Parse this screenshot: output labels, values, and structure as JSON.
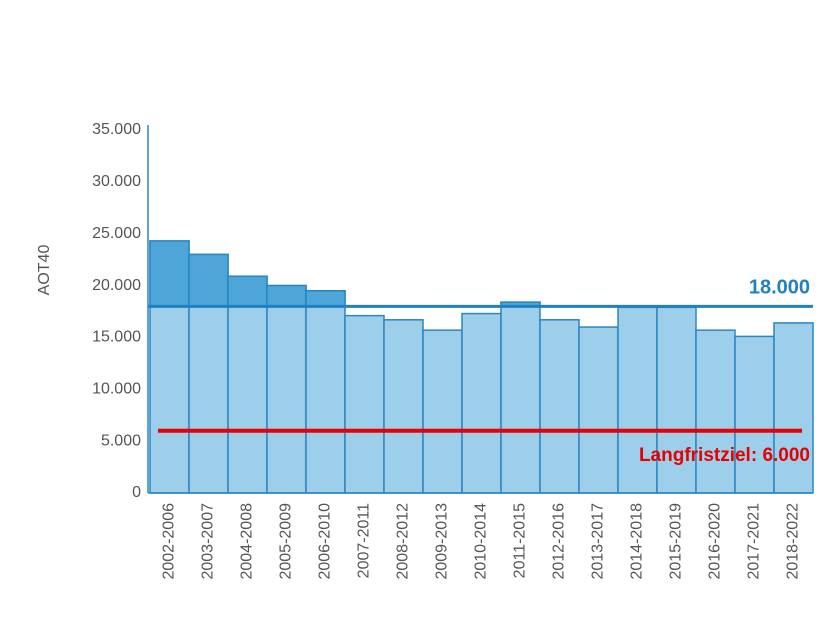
{
  "chart_data": {
    "type": "bar",
    "y_label": "AOT40",
    "categories": [
      "2002-2006",
      "2003-2007",
      "2004-2008",
      "2005-2009",
      "2006-2010",
      "2007-2011",
      "2008-2012",
      "2009-2013",
      "2010-2014",
      "2011-2015",
      "2012-2016",
      "2013-2017",
      "2014-2018",
      "2015-2019",
      "2016-2020",
      "2017-2021",
      "2018-2022"
    ],
    "values": [
      24300,
      23000,
      20900,
      20000,
      19500,
      17100,
      16700,
      15700,
      17300,
      18400,
      16700,
      16000,
      17900,
      17900,
      15700,
      15100,
      16400
    ],
    "color": "#9dcfea",
    "above_reference_color": "#4ea6d8",
    "edge_color": "#2b86c3",
    "ylim": [
      0,
      35000
    ],
    "yticks": [
      0,
      {
        "value": 5000,
        "label": "5.000"
      },
      {
        "value": 10000,
        "label": "10.000"
      },
      {
        "value": 15000,
        "label": "15.000"
      },
      {
        "value": 20000,
        "label": "20.000"
      },
      {
        "value": 25000,
        "label": "25.000"
      },
      {
        "value": 30000,
        "label": "30.000"
      },
      {
        "value": 35000,
        "label": "35.000"
      }
    ],
    "grid": false,
    "reference_lines": [
      {
        "value": 18000,
        "label": "18.000",
        "color": "#1f80c2"
      },
      {
        "value": 6000,
        "label": "Langfristziel: 6.000",
        "color": "#e60000"
      }
    ]
  }
}
